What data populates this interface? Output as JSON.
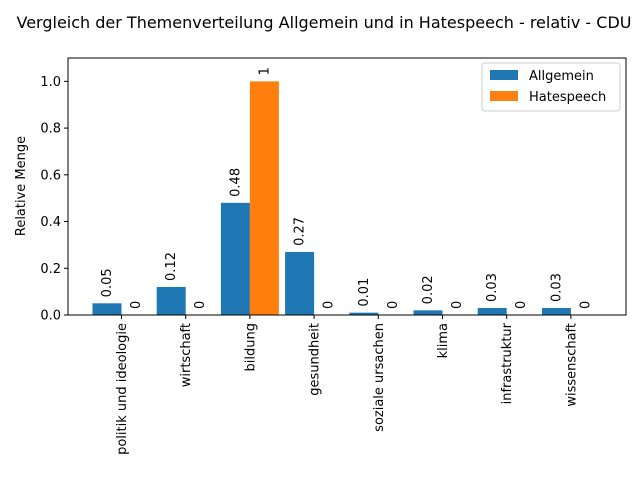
{
  "chart_data": {
    "type": "bar",
    "title": "Vergleich der Themenverteilung Allgemein und in Hatespeech - relativ - CDU",
    "xlabel": "",
    "ylabel": "Relative Menge",
    "ylim": [
      0,
      1.1
    ],
    "yticks": [
      0.0,
      0.2,
      0.4,
      0.6,
      0.8,
      1.0
    ],
    "ytick_labels": [
      "0.0",
      "0.2",
      "0.4",
      "0.6",
      "0.8",
      "1.0"
    ],
    "categories": [
      "politik und ideologie",
      "wirtschaft",
      "bildung",
      "gesundheit",
      "soziale ursachen",
      "klima",
      "infrastruktur",
      "wissenschaft"
    ],
    "series": [
      {
        "name": "Allgemein",
        "color": "#1f77b4",
        "values": [
          0.05,
          0.12,
          0.48,
          0.27,
          0.01,
          0.02,
          0.03,
          0.03
        ],
        "labels": [
          "0.05",
          "0.12",
          "0.48",
          "0.27",
          "0.01",
          "0.02",
          "0.03",
          "0.03"
        ]
      },
      {
        "name": "Hatespeech",
        "color": "#ff7f0e",
        "values": [
          0,
          0,
          1,
          0,
          0,
          0,
          0,
          0
        ],
        "labels": [
          "0",
          "0",
          "1",
          "0",
          "0",
          "0",
          "0",
          "0"
        ]
      }
    ],
    "legend_position": "top-right",
    "grid": false
  }
}
